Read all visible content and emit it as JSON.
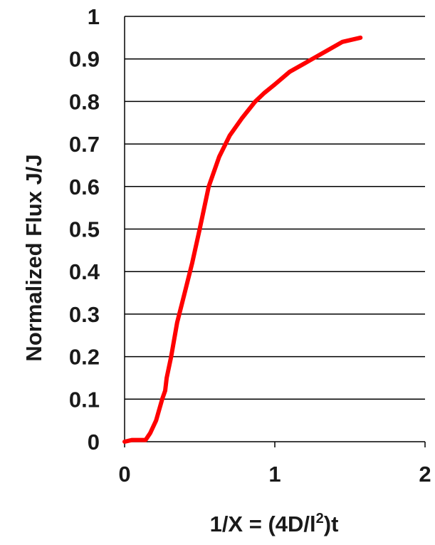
{
  "chart_data": {
    "type": "line",
    "title": "",
    "xlabel": "1/X = (4D/l²)t",
    "xlabel_parts": {
      "prefix": "1/X = (4D/l",
      "superscript": "2",
      "suffix": ")t"
    },
    "ylabel": "Normalized Flux J/J",
    "xlim": [
      0,
      2
    ],
    "ylim": [
      0,
      1
    ],
    "xticks": [
      0,
      1,
      2
    ],
    "xtick_labels": [
      "0",
      "1",
      "2"
    ],
    "yticks": [
      0,
      0.1,
      0.2,
      0.3,
      0.4,
      0.5,
      0.6,
      0.7,
      0.8,
      0.9,
      1
    ],
    "ytick_labels": [
      "0",
      "0.1",
      "0.2",
      "0.3",
      "0.4",
      "0.5",
      "0.6",
      "0.7",
      "0.8",
      "0.9",
      "1"
    ],
    "grid": "horizontal",
    "legend": "none",
    "series": [
      {
        "color": "#ff0000",
        "x": [
          0,
          0.05,
          0.14,
          0.17,
          0.21,
          0.25,
          0.27,
          0.28,
          0.31,
          0.35,
          0.4,
          0.45,
          0.5,
          0.56,
          0.63,
          0.7,
          0.78,
          0.87,
          0.93,
          1.0,
          1.1,
          1.2,
          1.25,
          1.35,
          1.45,
          1.57
        ],
        "y": [
          0,
          0.004,
          0.004,
          0.02,
          0.05,
          0.1,
          0.12,
          0.15,
          0.2,
          0.28,
          0.35,
          0.42,
          0.5,
          0.6,
          0.67,
          0.72,
          0.76,
          0.8,
          0.82,
          0.84,
          0.87,
          0.89,
          0.9,
          0.92,
          0.94,
          0.95
        ]
      }
    ]
  }
}
